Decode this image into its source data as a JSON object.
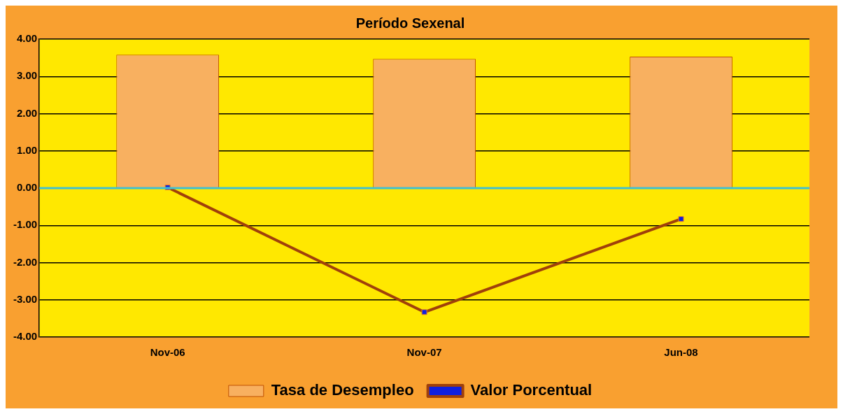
{
  "chart_data": {
    "type": "bar",
    "title": "Período Sexenal",
    "categories": [
      "Nov-06",
      "Nov-07",
      "Jun-08"
    ],
    "series": [
      {
        "name": "Tasa de Desempleo",
        "color": "#f8b060",
        "values": [
          3.58,
          3.47,
          3.53
        ]
      },
      {
        "name": "Valor Porcentual",
        "type": "line",
        "color": "#a0400a",
        "values": [
          0.02,
          -3.33,
          -0.83
        ]
      }
    ],
    "ylim": [
      -4,
      4
    ],
    "yticks": [
      {
        "value": -4,
        "label": "-4.00"
      },
      {
        "value": -3,
        "label": "-3.00"
      },
      {
        "value": -2,
        "label": "-2.00"
      },
      {
        "value": -1,
        "label": "-1.00"
      },
      {
        "value": 0,
        "label": "0.00"
      },
      {
        "value": 1,
        "label": "1.00"
      },
      {
        "value": 2,
        "label": "2.00"
      },
      {
        "value": 3,
        "label": "3.00"
      },
      {
        "value": 4,
        "label": "4.00"
      }
    ],
    "ref_lines": [
      {
        "axis": "y",
        "value": 0,
        "color": "#40c0d0"
      }
    ],
    "grid": "y",
    "legend": "bottom",
    "marker": "square"
  }
}
